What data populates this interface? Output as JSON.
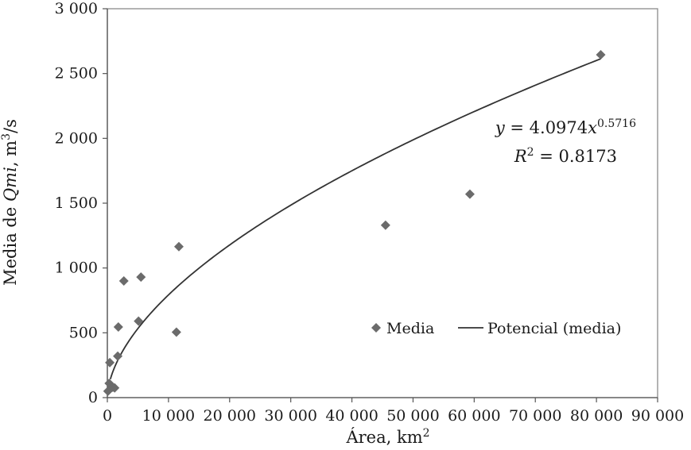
{
  "chart_data": {
    "type": "scatter",
    "xlabel_parts": [
      "Área, km",
      "2"
    ],
    "ylabel_parts": [
      "Media de ",
      "Qmi",
      ", m",
      "3",
      "/s"
    ],
    "xlim": [
      0,
      90000
    ],
    "ylim": [
      0,
      3000
    ],
    "x_ticks": [
      0,
      10000,
      20000,
      30000,
      40000,
      50000,
      60000,
      70000,
      80000,
      90000
    ],
    "x_tick_labels": [
      "0",
      "10 000",
      "20 000",
      "30 000",
      "40 000",
      "50 000",
      "60 000",
      "70 000",
      "80 000",
      "90 000"
    ],
    "y_ticks": [
      0,
      500,
      1000,
      1500,
      2000,
      2500,
      3000
    ],
    "y_tick_labels": [
      "0",
      "500",
      "1 000",
      "1 500",
      "2 000",
      "2 500",
      "3 000"
    ],
    "grid": false,
    "legend_position": "center-right",
    "series": [
      {
        "name": "Media",
        "kind": "points",
        "marker": "diamond",
        "color": "#6b6b6b",
        "points": [
          {
            "x": 100,
            "y": 50
          },
          {
            "x": 300,
            "y": 110
          },
          {
            "x": 400,
            "y": 270
          },
          {
            "x": 900,
            "y": 80
          },
          {
            "x": 1200,
            "y": 75
          },
          {
            "x": 1700,
            "y": 320
          },
          {
            "x": 1800,
            "y": 545
          },
          {
            "x": 2700,
            "y": 900
          },
          {
            "x": 5100,
            "y": 590
          },
          {
            "x": 5500,
            "y": 930
          },
          {
            "x": 11300,
            "y": 505
          },
          {
            "x": 11700,
            "y": 1165
          },
          {
            "x": 45500,
            "y": 1330
          },
          {
            "x": 59300,
            "y": 1570
          },
          {
            "x": 80700,
            "y": 2645
          }
        ]
      },
      {
        "name": "Potencial (media)",
        "kind": "power-trendline",
        "color": "#333333",
        "coefficient": 4.0974,
        "exponent": 0.5716,
        "x_range": [
          500,
          80700
        ]
      }
    ],
    "annotations": {
      "equation": {
        "prefix": "y",
        "mid": " = 4.0974",
        "var": "x",
        "exp": "0.5716"
      },
      "r2": {
        "prefix": "R",
        "sup": "2",
        "value": " = 0.8173"
      }
    }
  }
}
